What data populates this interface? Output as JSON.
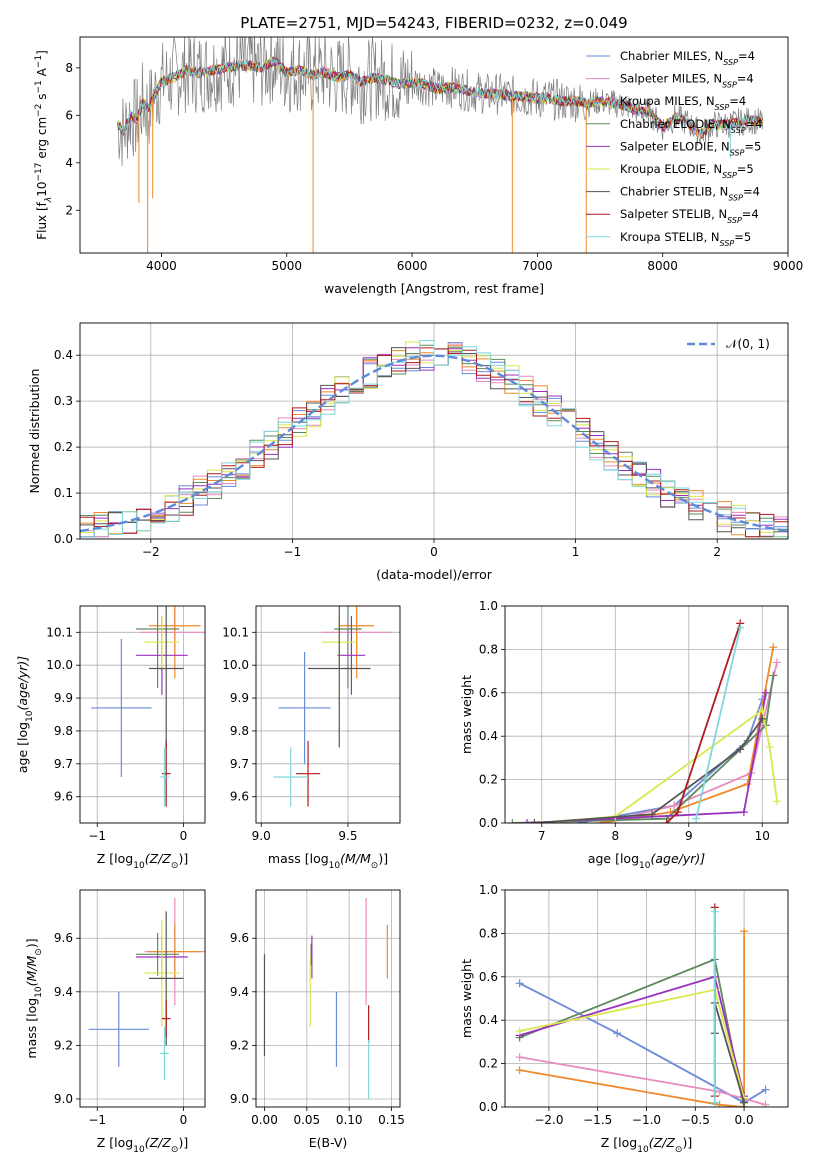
{
  "figure": {
    "title": "PLATE=2751, MJD=54243, FIBERID=0232, z=0.049"
  },
  "model_colors": {
    "Chabrier MILES": "#6a8bd9",
    "Salpeter MILES": "#e88bbf",
    "Kroupa MILES": "#f08a2c",
    "Chabrier ELODIE": "#5f8a5f",
    "Salpeter ELODIE": "#9b30c0",
    "Kroupa ELODIE": "#d9e84a",
    "Chabrier STELIB": "#555555",
    "Salpeter STELIB": "#b01c1c",
    "Kroupa STELIB": "#7fd8dc"
  },
  "chart_data": [
    {
      "type": "line",
      "title": "PLATE=2751, MJD=54243, FIBERID=0232, z=0.049",
      "xlabel": "wavelength [Angstrom, rest frame]",
      "ylabel_main": "Flux [f",
      "ylabel_sub": "λ",
      "ylabel_rest": "10",
      "ylabel_exp": "−17",
      "ylabel_tail": " erg cm",
      "ylabel_exp2": "−2",
      "ylabel_tail2": " s",
      "ylabel_exp3": "−1",
      "ylabel_tail3": " A",
      "ylabel_exp4": "−1",
      "ylabel_end": "]",
      "xlim": [
        3350,
        9000
      ],
      "ylim": [
        0.2,
        9.3
      ],
      "xticks": [
        4000,
        5000,
        6000,
        7000,
        8000,
        9000
      ],
      "yticks": [
        2,
        4,
        6,
        8
      ],
      "grid": false,
      "legend_position": "top-right",
      "data_wavelength": [
        3650,
        3700,
        3750,
        3800,
        3850,
        3900,
        3950,
        4000,
        4100,
        4200,
        4300,
        4400,
        4500,
        4600,
        4700,
        4800,
        4900,
        5000,
        5100,
        5200,
        5300,
        5400,
        5500,
        5600,
        5700,
        5800,
        5900,
        6000,
        6100,
        6200,
        6300,
        6400,
        6500,
        6600,
        6700,
        6800,
        6900,
        7000,
        7100,
        7200,
        7300,
        7400,
        7500,
        7600,
        7700,
        7800,
        7900,
        8000,
        8100,
        8200,
        8300,
        8400,
        8500,
        8600,
        8700,
        8800
      ],
      "data_flux": [
        5.6,
        5.3,
        6.0,
        5.8,
        6.5,
        6.3,
        6.9,
        7.4,
        7.6,
        7.9,
        7.8,
        7.9,
        8.0,
        8.1,
        8.1,
        8.0,
        8.3,
        7.8,
        7.9,
        7.7,
        7.8,
        7.6,
        7.7,
        7.4,
        7.6,
        7.5,
        7.3,
        7.4,
        7.3,
        7.1,
        7.2,
        7.1,
        7.0,
        6.9,
        6.9,
        6.8,
        6.8,
        6.7,
        6.7,
        6.6,
        6.6,
        6.5,
        6.6,
        6.5,
        6.4,
        6.2,
        6.1,
        5.5,
        5.9,
        5.7,
        5.2,
        5.6,
        5.6,
        5.7,
        5.8,
        5.7
      ],
      "absorption_wavelengths": [
        3820,
        3890,
        3930,
        5210,
        6800,
        7390,
        8540
      ],
      "absorption_depths": [
        2.3,
        0.2,
        2.5,
        0.2,
        0.2,
        0.2,
        4.2
      ],
      "series": [
        {
          "name": "Chabrier MILES",
          "subscript": "SSP",
          "nssp": "=4"
        },
        {
          "name": "Salpeter MILES",
          "subscript": "SSP",
          "nssp": "=4"
        },
        {
          "name": "Kroupa MILES",
          "subscript": "SSP",
          "nssp": "=4"
        },
        {
          "name": "Chabrier ELODIE",
          "subscript": "SSP",
          "nssp": "=4"
        },
        {
          "name": "Salpeter ELODIE",
          "subscript": "SSP",
          "nssp": "=5"
        },
        {
          "name": "Kroupa ELODIE",
          "subscript": "SSP",
          "nssp": "=5"
        },
        {
          "name": "Chabrier STELIB",
          "subscript": "SSP",
          "nssp": "=4"
        },
        {
          "name": "Salpeter STELIB",
          "subscript": "SSP",
          "nssp": "=4"
        },
        {
          "name": "Kroupa STELIB",
          "subscript": "SSP",
          "nssp": "=5"
        }
      ],
      "legend_prefix": "N"
    },
    {
      "type": "line",
      "xlabel": "(data-model)/error",
      "ylabel": "Normed distribution",
      "xlim": [
        -2.5,
        2.5
      ],
      "ylim": [
        0,
        0.47
      ],
      "xticks": [
        -2,
        -1,
        0,
        1,
        2
      ],
      "yticks": [
        0.0,
        0.1,
        0.2,
        0.3,
        0.4
      ],
      "grid": true,
      "legend_position": "top-right",
      "reference_curve": {
        "name": "𝒩(0, 1)",
        "mean": 0,
        "std": 1,
        "style": "dashed"
      },
      "bin_width": 0.1,
      "histogram_centers": [
        -2.45,
        -2.35,
        -2.25,
        -2.15,
        -2.05,
        -1.95,
        -1.85,
        -1.75,
        -1.65,
        -1.55,
        -1.45,
        -1.35,
        -1.25,
        -1.15,
        -1.05,
        -0.95,
        -0.85,
        -0.75,
        -0.65,
        -0.55,
        -0.45,
        -0.35,
        -0.25,
        -0.15,
        -0.05,
        0.05,
        0.15,
        0.25,
        0.35,
        0.45,
        0.55,
        0.65,
        0.75,
        0.85,
        0.95,
        1.05,
        1.15,
        1.25,
        1.35,
        1.45,
        1.55,
        1.65,
        1.75,
        1.85,
        1.95,
        2.05,
        2.15,
        2.25,
        2.35,
        2.45
      ]
    },
    {
      "type": "scatter",
      "xlabel": "Z [log",
      "xlabel_sub": "10",
      "xlabel_mid": "(Z/Z",
      "xlabel_sub2": "⊙",
      "xlabel_end": ")]",
      "ylabel": "age  [log",
      "ylabel_sub": "10",
      "ylabel_end": "(age/yr)]",
      "xlim": [
        -1.2,
        0.25
      ],
      "ylim": [
        9.52,
        10.18
      ],
      "xticks": [
        -1,
        0
      ],
      "yticks": [
        9.6,
        9.7,
        9.8,
        9.9,
        10.0,
        10.1
      ],
      "grid": true,
      "points": [
        {
          "model": "Chabrier MILES",
          "x": -0.72,
          "y": 9.87,
          "xerr": 0.35,
          "yerr": 0.21
        },
        {
          "model": "Salpeter MILES",
          "x": -0.1,
          "y": 10.1,
          "xerr": 0.4,
          "yerr": 0.07
        },
        {
          "model": "Kroupa MILES",
          "x": -0.1,
          "y": 10.12,
          "xerr": 0.3,
          "yerr": 0.16
        },
        {
          "model": "Chabrier ELODIE",
          "x": -0.3,
          "y": 10.11,
          "xerr": 0.25,
          "yerr": 0.18
        },
        {
          "model": "Salpeter ELODIE",
          "x": -0.25,
          "y": 10.03,
          "xerr": 0.3,
          "yerr": 0.12
        },
        {
          "model": "Kroupa ELODIE",
          "x": -0.25,
          "y": 10.07,
          "xerr": 0.2,
          "yerr": 0.08
        },
        {
          "model": "Chabrier STELIB",
          "x": -0.2,
          "y": 9.99,
          "xerr": 0.2,
          "yerr": 0.24
        },
        {
          "model": "Salpeter STELIB",
          "x": -0.2,
          "y": 9.67,
          "xerr": 0.05,
          "yerr": 0.1
        },
        {
          "model": "Kroupa STELIB",
          "x": -0.22,
          "y": 9.66,
          "xerr": 0.05,
          "yerr": 0.09
        }
      ]
    },
    {
      "type": "scatter",
      "xlabel": "mass [log",
      "xlabel_sub": "10",
      "xlabel_mid": "(M/M",
      "xlabel_sub2": "⊙",
      "xlabel_end": ")]",
      "xlim": [
        8.97,
        9.8
      ],
      "ylim": [
        9.52,
        10.18
      ],
      "xticks": [
        9.0,
        9.5
      ],
      "yticks": [
        9.6,
        9.7,
        9.8,
        9.9,
        10.0,
        10.1
      ],
      "grid": true,
      "points": [
        {
          "model": "Chabrier MILES",
          "x": 9.25,
          "y": 9.87,
          "xerr": 0.15,
          "yerr": 0.17
        },
        {
          "model": "Salpeter MILES",
          "x": 9.55,
          "y": 10.1,
          "xerr": 0.2,
          "yerr": 0.07
        },
        {
          "model": "Kroupa MILES",
          "x": 9.55,
          "y": 10.12,
          "xerr": 0.1,
          "yerr": 0.16
        },
        {
          "model": "Chabrier ELODIE",
          "x": 9.5,
          "y": 10.11,
          "xerr": 0.08,
          "yerr": 0.18
        },
        {
          "model": "Salpeter ELODIE",
          "x": 9.52,
          "y": 10.03,
          "xerr": 0.08,
          "yerr": 0.12
        },
        {
          "model": "Kroupa ELODIE",
          "x": 9.45,
          "y": 10.07,
          "xerr": 0.1,
          "yerr": 0.08
        },
        {
          "model": "Chabrier STELIB",
          "x": 9.45,
          "y": 9.99,
          "xerr": 0.18,
          "yerr": 0.24
        },
        {
          "model": "Salpeter STELIB",
          "x": 9.27,
          "y": 9.67,
          "xerr": 0.07,
          "yerr": 0.1
        },
        {
          "model": "Kroupa STELIB",
          "x": 9.17,
          "y": 9.66,
          "xerr": 0.1,
          "yerr": 0.09
        }
      ]
    },
    {
      "type": "line",
      "xlabel": "age  [log",
      "xlabel_sub": "10",
      "xlabel_end": "(age/yr)]",
      "ylabel": "mass weight",
      "xlim": [
        6.5,
        10.35
      ],
      "ylim": [
        0,
        1.0
      ],
      "xticks": [
        7,
        8,
        9,
        10
      ],
      "yticks": [
        0.0,
        0.2,
        0.4,
        0.6,
        0.8,
        1.0
      ],
      "grid": true,
      "series": [
        {
          "name": "Chabrier MILES",
          "x": [
            7.5,
            8.8,
            9.8,
            10.0,
            10.05
          ],
          "y": [
            0.0,
            0.08,
            0.38,
            0.57,
            0.6
          ]
        },
        {
          "name": "Salpeter MILES",
          "x": [
            7.8,
            8.8,
            9.85,
            10.2
          ],
          "y": [
            0.0,
            0.08,
            0.23,
            0.74
          ]
        },
        {
          "name": "Kroupa MILES",
          "x": [
            7.8,
            8.75,
            9.8,
            10.15
          ],
          "y": [
            0.0,
            0.05,
            0.18,
            0.81
          ]
        },
        {
          "name": "Chabrier ELODIE",
          "x": [
            6.6,
            8.7,
            10.05,
            10.15
          ],
          "y": [
            0.0,
            0.02,
            0.45,
            0.68
          ]
        },
        {
          "name": "Salpeter ELODIE",
          "x": [
            6.8,
            9.75,
            10.05
          ],
          "y": [
            0.0,
            0.05,
            0.6
          ]
        },
        {
          "name": "Kroupa ELODIE",
          "x": [
            7.0,
            8.0,
            10.0,
            10.1,
            10.2
          ],
          "y": [
            0.0,
            0.03,
            0.52,
            0.35,
            0.1
          ]
        },
        {
          "name": "Chabrier STELIB",
          "x": [
            6.9,
            8.5,
            9.7,
            10.0
          ],
          "y": [
            0.0,
            0.04,
            0.34,
            0.48
          ]
        },
        {
          "name": "Salpeter STELIB",
          "x": [
            8.7,
            8.85,
            9.7
          ],
          "y": [
            0.0,
            0.05,
            0.92
          ]
        },
        {
          "name": "Kroupa STELIB",
          "x": [
            9.1,
            9.7
          ],
          "y": [
            0.02,
            0.9
          ]
        }
      ]
    },
    {
      "type": "scatter",
      "xlabel": "Z [log",
      "xlabel_sub": "10",
      "xlabel_mid": "(Z/Z",
      "xlabel_sub2": "⊙",
      "xlabel_end": ")]",
      "ylabel": "mass [log",
      "ylabel_sub": "10",
      "ylabel_mid": "(M/M",
      "ylabel_sub2": "⊙",
      "ylabel_end": ")]",
      "xlim": [
        -1.2,
        0.25
      ],
      "ylim": [
        8.97,
        9.78
      ],
      "xticks": [
        -1,
        0
      ],
      "yticks": [
        9.0,
        9.2,
        9.4,
        9.6
      ],
      "grid": true,
      "points": [
        {
          "model": "Chabrier MILES",
          "x": -0.75,
          "y": 9.26,
          "xerr": 0.35,
          "yerr": 0.14
        },
        {
          "model": "Salpeter MILES",
          "x": -0.1,
          "y": 9.55,
          "xerr": 0.35,
          "yerr": 0.2
        },
        {
          "model": "Kroupa MILES",
          "x": -0.1,
          "y": 9.55,
          "xerr": 0.3,
          "yerr": 0.1
        },
        {
          "model": "Chabrier ELODIE",
          "x": -0.3,
          "y": 9.54,
          "xerr": 0.25,
          "yerr": 0.08
        },
        {
          "model": "Salpeter ELODIE",
          "x": -0.25,
          "y": 9.53,
          "xerr": 0.3,
          "yerr": 0.08
        },
        {
          "model": "Kroupa ELODIE",
          "x": -0.25,
          "y": 9.47,
          "xerr": 0.2,
          "yerr": 0.2
        },
        {
          "model": "Chabrier STELIB",
          "x": -0.2,
          "y": 9.45,
          "xerr": 0.2,
          "yerr": 0.25
        },
        {
          "model": "Salpeter STELIB",
          "x": -0.2,
          "y": 9.3,
          "xerr": 0.05,
          "yerr": 0.07
        },
        {
          "model": "Kroupa STELIB",
          "x": -0.22,
          "y": 9.17,
          "xerr": 0.05,
          "yerr": 0.1
        }
      ]
    },
    {
      "type": "scatter",
      "xlabel": "E(B-V)",
      "xlim": [
        -0.01,
        0.16
      ],
      "ylim": [
        8.97,
        9.78
      ],
      "xticks": [
        0.0,
        0.05,
        0.1,
        0.15
      ],
      "xticklabels": [
        "0.00",
        "0.05",
        "0.10",
        "0.15"
      ],
      "yticks": [
        9.0,
        9.2,
        9.4,
        9.6
      ],
      "grid": true,
      "points": [
        {
          "model": "Chabrier MILES",
          "x": 0.085,
          "y": 9.26,
          "yerr": 0.14
        },
        {
          "model": "Salpeter MILES",
          "x": 0.12,
          "y": 9.55,
          "yerr": 0.2
        },
        {
          "model": "Kroupa MILES",
          "x": 0.145,
          "y": 9.55,
          "yerr": 0.1
        },
        {
          "model": "Chabrier ELODIE",
          "x": 0.055,
          "y": 9.54,
          "yerr": 0.04
        },
        {
          "model": "Salpeter ELODIE",
          "x": 0.056,
          "y": 9.53,
          "yerr": 0.08
        },
        {
          "model": "Kroupa ELODIE",
          "x": 0.054,
          "y": 9.4,
          "yerr": 0.13
        },
        {
          "model": "Chabrier STELIB",
          "x": 0.0,
          "y": 9.35,
          "yerr": 0.19
        },
        {
          "model": "Salpeter STELIB",
          "x": 0.123,
          "y": 9.28,
          "yerr": 0.07
        },
        {
          "model": "Kroupa STELIB",
          "x": 0.123,
          "y": 9.11,
          "yerr": 0.11
        }
      ]
    },
    {
      "type": "line",
      "xlabel": "Z [log",
      "xlabel_sub": "10",
      "xlabel_mid": "(Z/Z",
      "xlabel_sub2": "⊙",
      "xlabel_end": ")]",
      "ylabel": "mass weight",
      "xlim": [
        -2.45,
        0.45
      ],
      "ylim": [
        0,
        1.0
      ],
      "xticks": [
        -2.0,
        -1.5,
        -1.0,
        -0.5,
        0.0
      ],
      "xticklabels": [
        "−2.0",
        "−1.5",
        "−1.0",
        "−0.5",
        "0.0"
      ],
      "yticks": [
        0.0,
        0.2,
        0.4,
        0.6,
        0.8,
        1.0
      ],
      "grid": true,
      "series": [
        {
          "name": "Chabrier MILES",
          "x": [
            -2.3,
            -1.3,
            0.0,
            0.22
          ],
          "y": [
            0.57,
            0.34,
            0.02,
            0.08
          ]
        },
        {
          "name": "Salpeter MILES",
          "x": [
            -2.3,
            -0.25,
            0.22
          ],
          "y": [
            0.23,
            0.07,
            0.01
          ]
        },
        {
          "name": "Kroupa MILES",
          "x": [
            -2.3,
            -0.25,
            0.0,
            0.0
          ],
          "y": [
            0.17,
            0.01,
            0.0,
            0.81
          ]
        },
        {
          "name": "Chabrier ELODIE",
          "x": [
            -2.3,
            -0.3,
            0.0
          ],
          "y": [
            0.32,
            0.68,
            0.0
          ]
        },
        {
          "name": "Salpeter ELODIE",
          "x": [
            -2.3,
            -0.3,
            0.0
          ],
          "y": [
            0.33,
            0.6,
            0.05
          ]
        },
        {
          "name": "Kroupa ELODIE",
          "x": [
            -2.3,
            -0.3,
            0.0
          ],
          "y": [
            0.35,
            0.54,
            0.04
          ]
        },
        {
          "name": "Chabrier STELIB",
          "x": [
            -0.3,
            -0.3,
            0.0
          ],
          "y": [
            0.34,
            0.48,
            0.02
          ]
        },
        {
          "name": "Salpeter STELIB",
          "x": [
            -0.3,
            -0.3
          ],
          "y": [
            0.05,
            0.92
          ]
        },
        {
          "name": "Kroupa STELIB",
          "x": [
            -0.3,
            -0.3
          ],
          "y": [
            0.02,
            0.9
          ]
        }
      ]
    }
  ]
}
